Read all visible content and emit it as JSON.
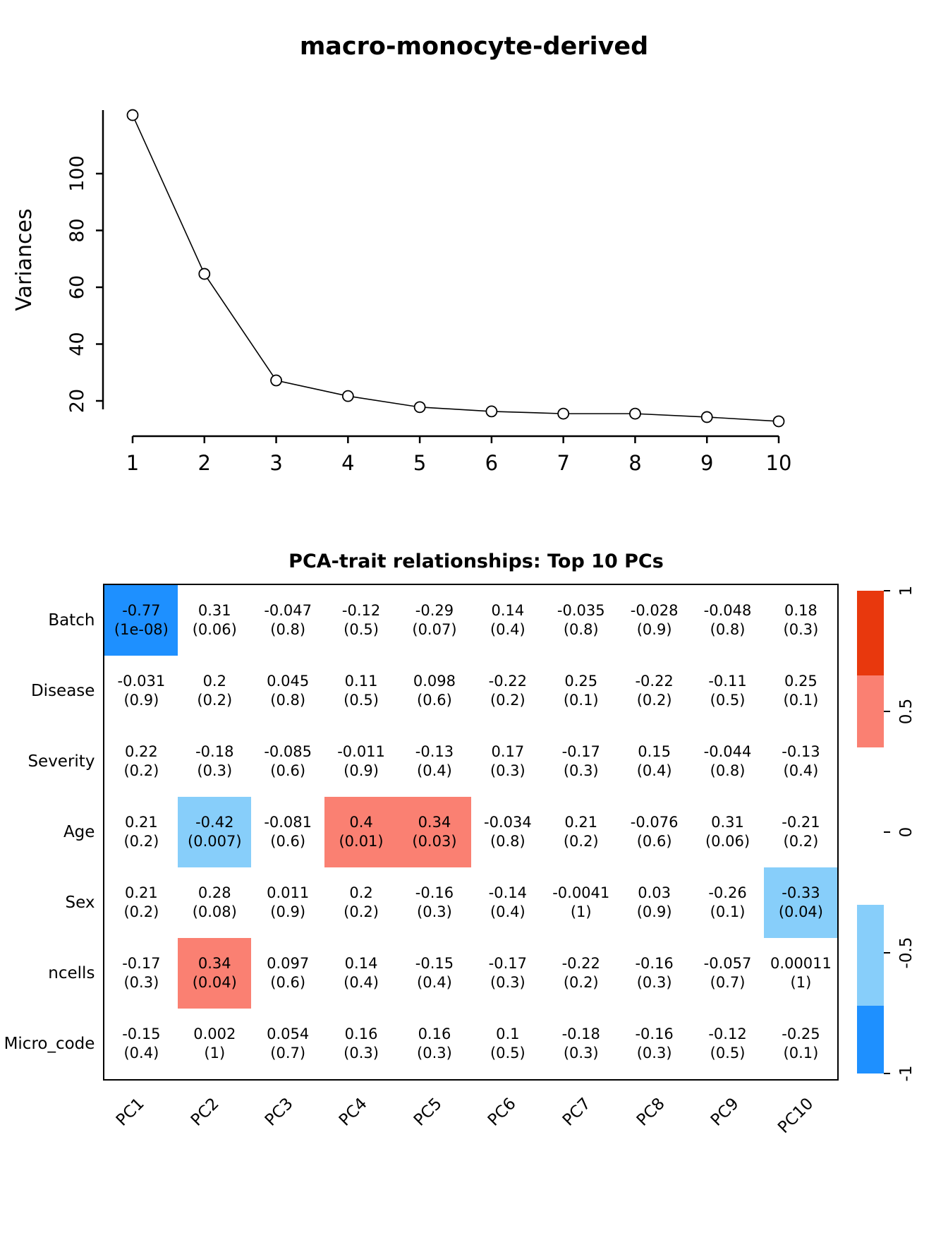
{
  "chart_data": [
    {
      "type": "line",
      "title": "macro-monocyte-derived",
      "xlabel": "",
      "ylabel": "Variances",
      "x": [
        1,
        2,
        3,
        4,
        5,
        6,
        7,
        8,
        9,
        10
      ],
      "values": [
        120.6,
        64.7,
        27.2,
        21.7,
        17.8,
        16.3,
        15.5,
        15.5,
        14.3,
        12.8
      ],
      "yticks": [
        20,
        40,
        60,
        80,
        100
      ],
      "ylim": [
        10,
        125
      ],
      "marker": "open-circle",
      "grid": false
    },
    {
      "type": "heatmap",
      "title": "PCA-trait relationships: Top 10 PCs",
      "columns": [
        "PC1",
        "PC2",
        "PC3",
        "PC4",
        "PC5",
        "PC6",
        "PC7",
        "PC8",
        "PC9",
        "PC10"
      ],
      "rows": [
        "Batch",
        "Disease",
        "Severity",
        "Age",
        "Sex",
        "ncells",
        "Micro_code"
      ],
      "cells": [
        [
          {
            "r": "-0.77",
            "p": "(1e-08)",
            "c": "strong_neg"
          },
          {
            "r": "0.31",
            "p": "(0.06)"
          },
          {
            "r": "-0.047",
            "p": "(0.8)"
          },
          {
            "r": "-0.12",
            "p": "(0.5)"
          },
          {
            "r": "-0.29",
            "p": "(0.07)"
          },
          {
            "r": "0.14",
            "p": "(0.4)"
          },
          {
            "r": "-0.035",
            "p": "(0.8)"
          },
          {
            "r": "-0.028",
            "p": "(0.9)"
          },
          {
            "r": "-0.048",
            "p": "(0.8)"
          },
          {
            "r": "0.18",
            "p": "(0.3)"
          }
        ],
        [
          {
            "r": "-0.031",
            "p": "(0.9)"
          },
          {
            "r": "0.2",
            "p": "(0.2)"
          },
          {
            "r": "0.045",
            "p": "(0.8)"
          },
          {
            "r": "0.11",
            "p": "(0.5)"
          },
          {
            "r": "0.098",
            "p": "(0.6)"
          },
          {
            "r": "-0.22",
            "p": "(0.2)"
          },
          {
            "r": "0.25",
            "p": "(0.1)"
          },
          {
            "r": "-0.22",
            "p": "(0.2)"
          },
          {
            "r": "-0.11",
            "p": "(0.5)"
          },
          {
            "r": "0.25",
            "p": "(0.1)"
          }
        ],
        [
          {
            "r": "0.22",
            "p": "(0.2)"
          },
          {
            "r": "-0.18",
            "p": "(0.3)"
          },
          {
            "r": "-0.085",
            "p": "(0.6)"
          },
          {
            "r": "-0.011",
            "p": "(0.9)"
          },
          {
            "r": "-0.13",
            "p": "(0.4)"
          },
          {
            "r": "0.17",
            "p": "(0.3)"
          },
          {
            "r": "-0.17",
            "p": "(0.3)"
          },
          {
            "r": "0.15",
            "p": "(0.4)"
          },
          {
            "r": "-0.044",
            "p": "(0.8)"
          },
          {
            "r": "-0.13",
            "p": "(0.4)"
          }
        ],
        [
          {
            "r": "0.21",
            "p": "(0.2)"
          },
          {
            "r": "-0.42",
            "p": "(0.007)",
            "c": "weak_neg"
          },
          {
            "r": "-0.081",
            "p": "(0.6)"
          },
          {
            "r": "0.4",
            "p": "(0.01)",
            "c": "weak_pos"
          },
          {
            "r": "0.34",
            "p": "(0.03)",
            "c": "weak_pos"
          },
          {
            "r": "-0.034",
            "p": "(0.8)"
          },
          {
            "r": "0.21",
            "p": "(0.2)"
          },
          {
            "r": "-0.076",
            "p": "(0.6)"
          },
          {
            "r": "0.31",
            "p": "(0.06)"
          },
          {
            "r": "-0.21",
            "p": "(0.2)"
          }
        ],
        [
          {
            "r": "0.21",
            "p": "(0.2)"
          },
          {
            "r": "0.28",
            "p": "(0.08)"
          },
          {
            "r": "0.011",
            "p": "(0.9)"
          },
          {
            "r": "0.2",
            "p": "(0.2)"
          },
          {
            "r": "-0.16",
            "p": "(0.3)"
          },
          {
            "r": "-0.14",
            "p": "(0.4)"
          },
          {
            "r": "-0.0041",
            "p": "(1)"
          },
          {
            "r": "0.03",
            "p": "(0.9)"
          },
          {
            "r": "-0.26",
            "p": "(0.1)"
          },
          {
            "r": "-0.33",
            "p": "(0.04)",
            "c": "weak_neg"
          }
        ],
        [
          {
            "r": "-0.17",
            "p": "(0.3)"
          },
          {
            "r": "0.34",
            "p": "(0.04)",
            "c": "weak_pos"
          },
          {
            "r": "0.097",
            "p": "(0.6)"
          },
          {
            "r": "0.14",
            "p": "(0.4)"
          },
          {
            "r": "-0.15",
            "p": "(0.4)"
          },
          {
            "r": "-0.17",
            "p": "(0.3)"
          },
          {
            "r": "-0.22",
            "p": "(0.2)"
          },
          {
            "r": "-0.16",
            "p": "(0.3)"
          },
          {
            "r": "-0.057",
            "p": "(0.7)"
          },
          {
            "r": "0.00011",
            "p": "(1)"
          }
        ],
        [
          {
            "r": "-0.15",
            "p": "(0.4)"
          },
          {
            "r": "0.002",
            "p": "(1)"
          },
          {
            "r": "0.054",
            "p": "(0.7)"
          },
          {
            "r": "0.16",
            "p": "(0.3)"
          },
          {
            "r": "0.16",
            "p": "(0.3)"
          },
          {
            "r": "0.1",
            "p": "(0.5)"
          },
          {
            "r": "-0.18",
            "p": "(0.3)"
          },
          {
            "r": "-0.16",
            "p": "(0.3)"
          },
          {
            "r": "-0.12",
            "p": "(0.5)"
          },
          {
            "r": "-0.25",
            "p": "(0.1)"
          }
        ]
      ],
      "palette": {
        "strong_pos": "#E8380D",
        "weak_pos": "#FA8072",
        "none": "#FFFFFF",
        "weak_neg": "#87CEFA",
        "strong_neg": "#1E90FF"
      },
      "colorbar": {
        "ticks": [
          "1",
          "0.5",
          "0",
          "-0.5",
          "-1"
        ],
        "range": [
          -1,
          1
        ],
        "segments": [
          {
            "color": "strong_pos",
            "frac": 0.175
          },
          {
            "color": "weak_pos",
            "frac": 0.15
          },
          {
            "color": "none",
            "frac": 0.325
          },
          {
            "color": "weak_neg",
            "frac": 0.21
          },
          {
            "color": "strong_neg",
            "frac": 0.14
          }
        ]
      }
    }
  ]
}
